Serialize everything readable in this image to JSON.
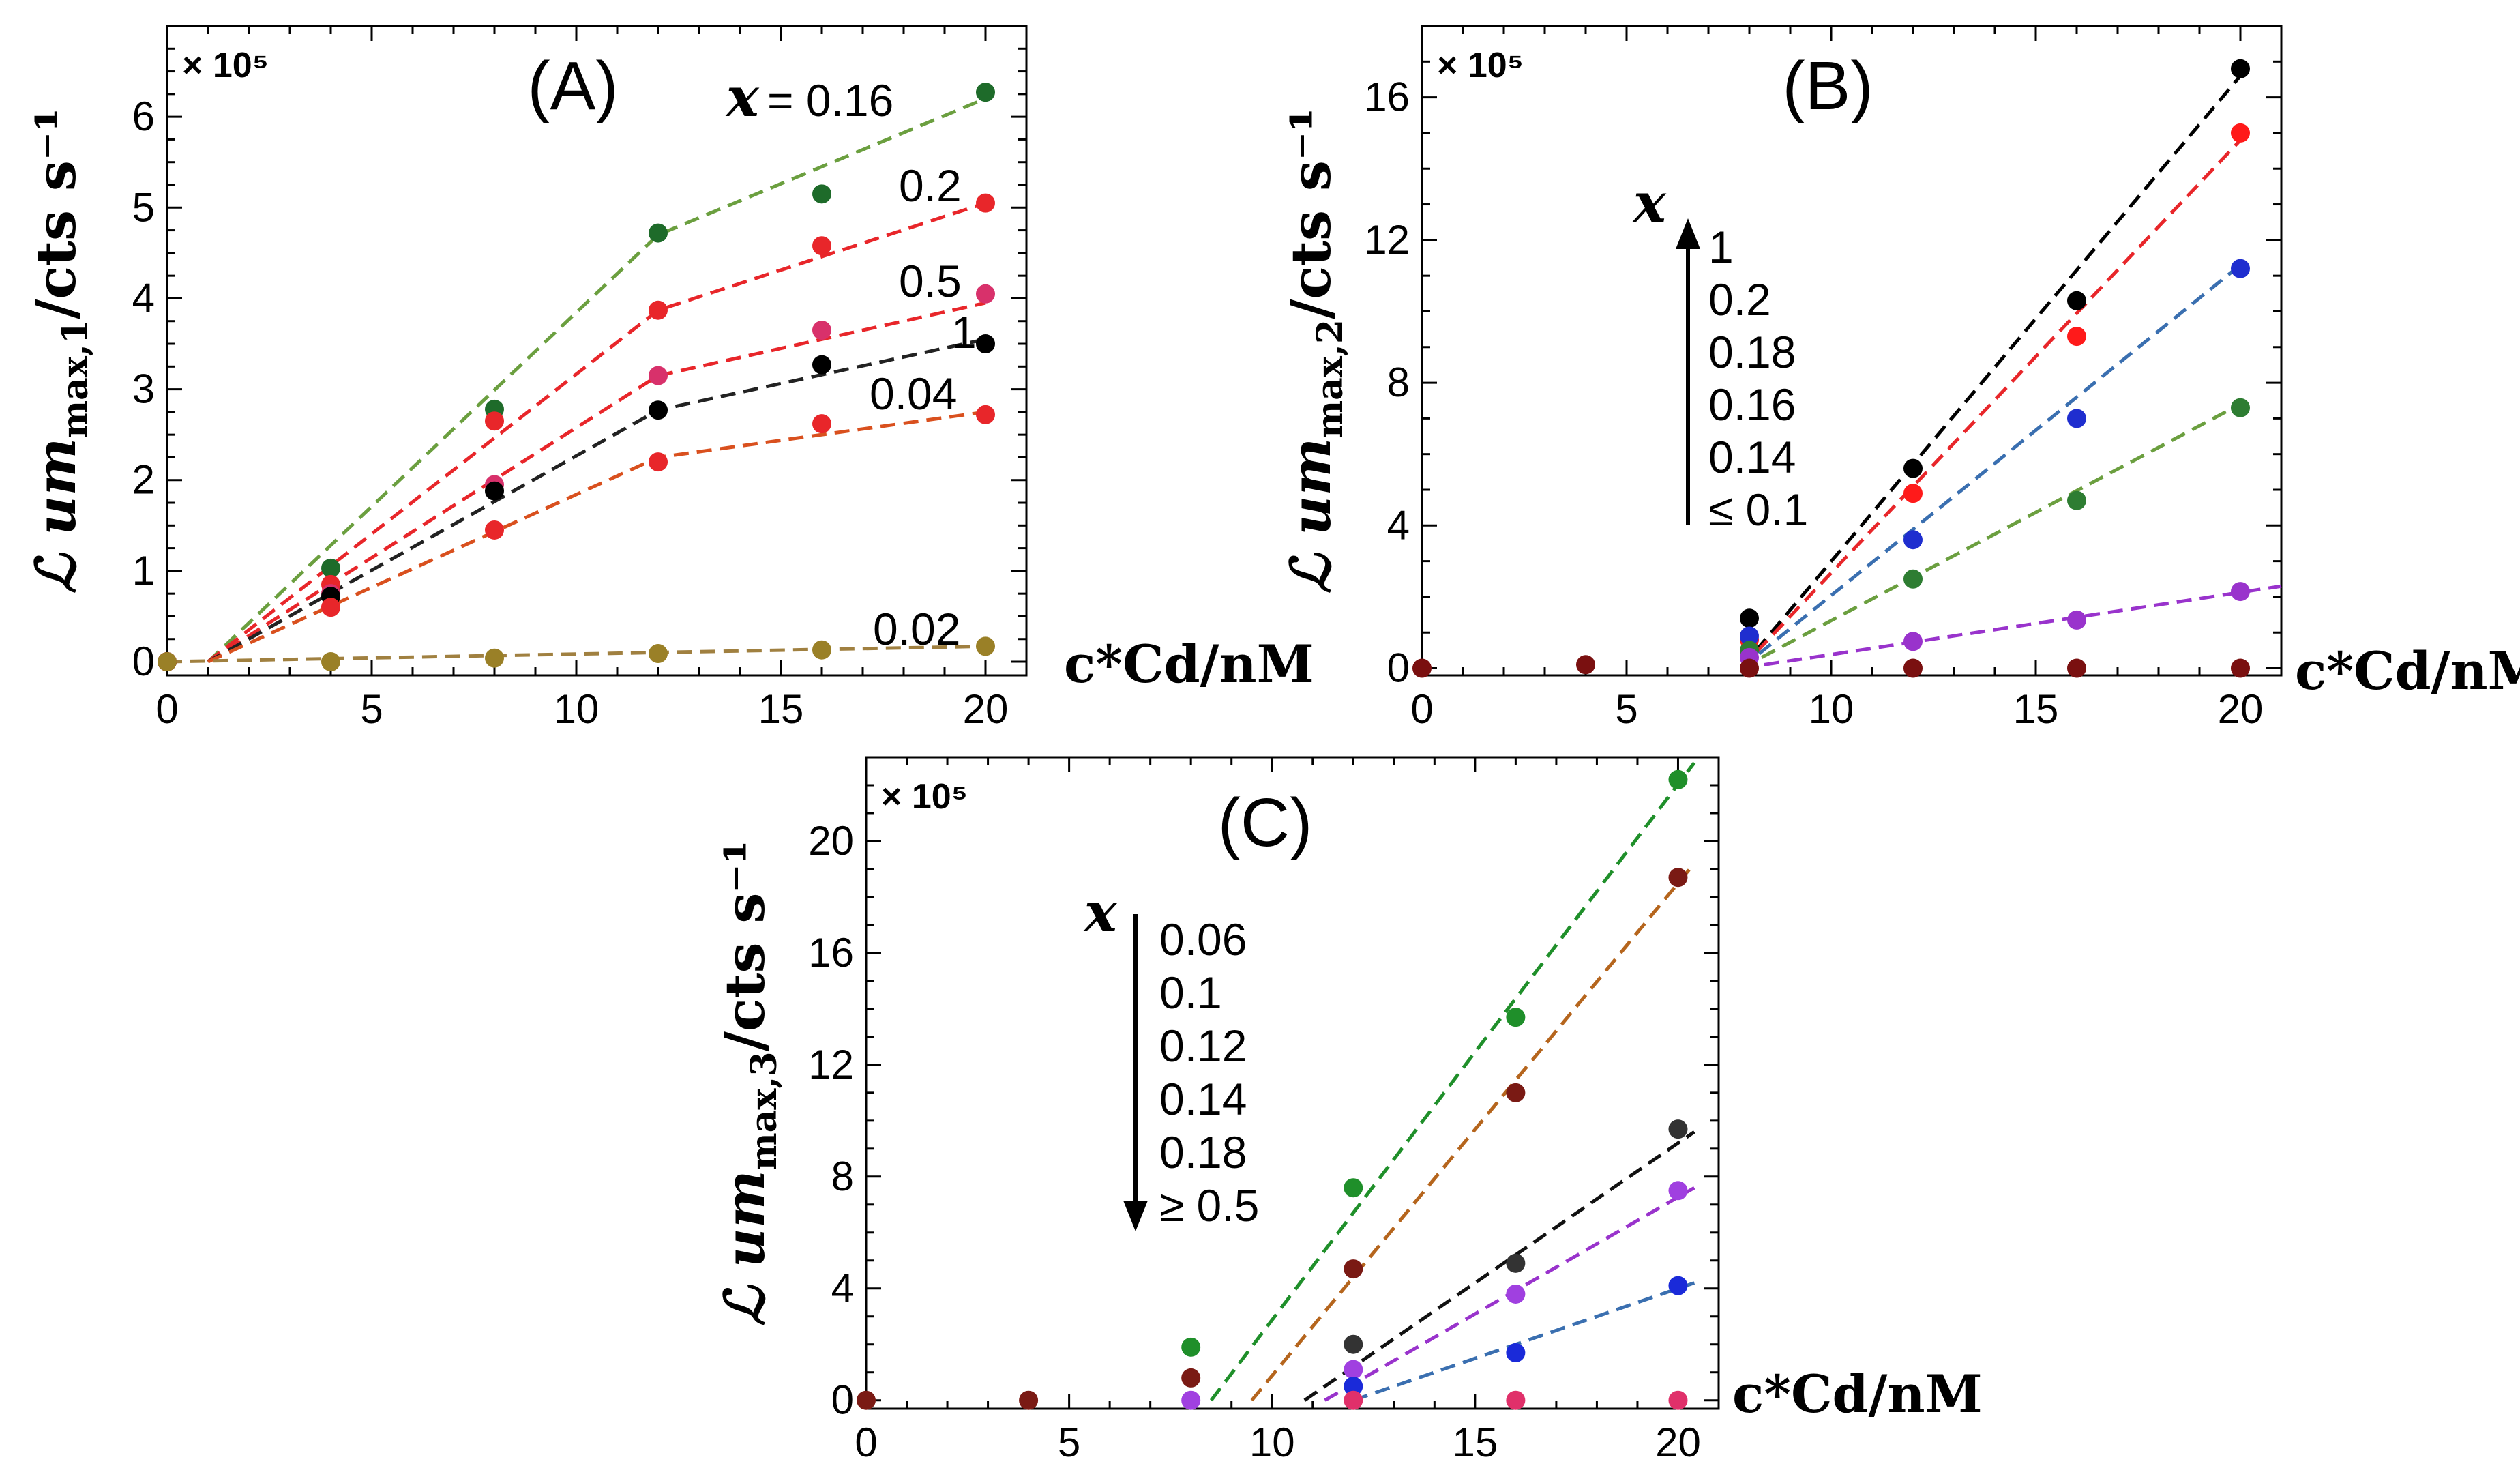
{
  "figure": {
    "scale_label": "× 10⁵",
    "ylabel_prefix": "ℒ um",
    "ylabel_suffix": "/cts s⁻¹",
    "xlabel": "c*Cd/nM",
    "x_var": "x"
  },
  "chart_data": [
    {
      "id": "A",
      "type": "scatter",
      "title": "(A)",
      "ylabel_subscript": "max,1",
      "xlim": [
        0,
        21
      ],
      "ylim": [
        -0.15,
        7.0
      ],
      "xticks": [
        0,
        5,
        10,
        15,
        20
      ],
      "yticks": [
        0,
        1,
        2,
        3,
        4,
        5,
        6
      ],
      "series": [
        {
          "name": "x = 0.16",
          "color": "#1e6b2a",
          "line_color": "#6b9f3f",
          "x": [
            0,
            4,
            8,
            12,
            16,
            20
          ],
          "y": [
            0,
            1.03,
            2.78,
            4.72,
            5.15,
            6.27
          ],
          "fit_x": [
            1,
            12,
            20
          ],
          "fit_y": [
            0,
            4.7,
            6.2
          ]
        },
        {
          "name": "0.2",
          "color": "#e8262a",
          "line_color": "#e8262a",
          "x": [
            0,
            4,
            8,
            12,
            16,
            20
          ],
          "y": [
            0,
            0.85,
            2.65,
            3.87,
            4.58,
            5.05
          ],
          "fit_x": [
            1,
            12,
            20
          ],
          "fit_y": [
            0,
            3.87,
            5.05
          ]
        },
        {
          "name": "0.5",
          "color": "#d8316b",
          "line_color": "#e8262a",
          "x": [
            0,
            4,
            8,
            12,
            16,
            20
          ],
          "y": [
            0,
            0.75,
            1.95,
            3.15,
            3.65,
            4.05
          ],
          "fit_x": [
            1,
            12,
            20
          ],
          "fit_y": [
            0,
            3.15,
            3.95
          ]
        },
        {
          "name": "1",
          "color": "#000000",
          "line_color": "#222222",
          "x": [
            0,
            4,
            8,
            12,
            16,
            20
          ],
          "y": [
            0,
            0.72,
            1.88,
            2.77,
            3.27,
            3.5
          ],
          "fit_x": [
            1,
            12,
            20
          ],
          "fit_y": [
            0,
            2.77,
            3.55
          ]
        },
        {
          "name": "0.04",
          "color": "#e8262a",
          "line_color": "#d9501e",
          "x": [
            0,
            4,
            8,
            12,
            16,
            20
          ],
          "y": [
            0,
            0.6,
            1.45,
            2.2,
            2.62,
            2.72
          ],
          "fit_x": [
            1,
            12,
            20
          ],
          "fit_y": [
            0,
            2.25,
            2.75
          ]
        },
        {
          "name": "0.02",
          "color": "#9a8027",
          "line_color": "#a08040",
          "x": [
            0,
            4,
            8,
            12,
            16,
            20
          ],
          "y": [
            0,
            0.0,
            0.04,
            0.09,
            0.13,
            0.17
          ],
          "fit_x": [
            0,
            20
          ],
          "fit_y": [
            0,
            0.17
          ]
        }
      ],
      "annotations": [
        "= 0.16",
        "0.2",
        "0.5",
        "1",
        "0.04",
        "0.02"
      ]
    },
    {
      "id": "B",
      "type": "scatter",
      "title": "(B)",
      "ylabel_subscript": "max,2",
      "xlim": [
        0,
        21
      ],
      "ylim": [
        -0.2,
        18.0
      ],
      "xticks": [
        0,
        5,
        10,
        15,
        20
      ],
      "yticks": [
        0,
        4,
        8,
        12,
        16
      ],
      "series": [
        {
          "name": "1",
          "color": "#000000",
          "line_color": "#000000",
          "x": [
            8,
            12,
            16,
            20
          ],
          "y": [
            1.4,
            5.6,
            10.3,
            16.8
          ],
          "fit_x": [
            7.8,
            20
          ],
          "fit_y": [
            0,
            16.6
          ]
        },
        {
          "name": "0.2",
          "color": "#ff1a1a",
          "line_color": "#e8262a",
          "x": [
            8,
            12,
            16,
            20
          ],
          "y": [
            0.8,
            4.9,
            9.3,
            15.0
          ],
          "fit_x": [
            7.8,
            20
          ],
          "fit_y": [
            0,
            14.8
          ]
        },
        {
          "name": "0.18",
          "color": "#1f2ecf",
          "line_color": "#3a6fb0",
          "x": [
            8,
            12,
            16,
            20
          ],
          "y": [
            0.9,
            3.6,
            7.0,
            11.2
          ],
          "fit_x": [
            7.8,
            20
          ],
          "fit_y": [
            0,
            11.3
          ]
        },
        {
          "name": "0.16",
          "color": "#2e7d32",
          "line_color": "#6b9f3f",
          "x": [
            8,
            12,
            16,
            20
          ],
          "y": [
            0.5,
            2.5,
            4.7,
            7.3
          ],
          "fit_x": [
            7.8,
            20
          ],
          "fit_y": [
            0,
            7.4
          ]
        },
        {
          "name": "0.14",
          "color": "#9933cc",
          "line_color": "#9933cc",
          "x": [
            8,
            12,
            16,
            20
          ],
          "y": [
            0.3,
            0.75,
            1.35,
            2.15
          ],
          "fit_x": [
            7.8,
            21
          ],
          "fit_y": [
            0,
            2.3
          ]
        },
        {
          "name": "≤ 0.1",
          "color": "#7a1010",
          "line_color": "#7a1010",
          "x": [
            0,
            4,
            8,
            12,
            16,
            20
          ],
          "y": [
            0,
            0.1,
            0,
            0,
            0,
            0
          ],
          "fit_x": [],
          "fit_y": []
        }
      ],
      "legend_items": [
        "1",
        "0.2",
        "0.18",
        "0.16",
        "0.14",
        "≤ 0.1"
      ]
    },
    {
      "id": "C",
      "type": "scatter",
      "title": "(C)",
      "ylabel_subscript": "max,3",
      "xlim": [
        0,
        21
      ],
      "ylim": [
        -0.3,
        23.0
      ],
      "xticks": [
        0,
        5,
        10,
        15,
        20
      ],
      "yticks": [
        0,
        4,
        8,
        12,
        16,
        20
      ],
      "series": [
        {
          "name": "0.06",
          "color": "#1f8f2a",
          "line_color": "#1f8f2a",
          "x": [
            8,
            12,
            16,
            20
          ],
          "y": [
            1.9,
            7.6,
            13.7,
            22.2
          ],
          "fit_x": [
            8.5,
            20.4
          ],
          "fit_y": [
            0,
            22.8
          ]
        },
        {
          "name": "0.1",
          "color": "#7a1a14",
          "line_color": "#b5651d",
          "x": [
            0,
            4,
            8,
            12,
            16,
            20
          ],
          "y": [
            0,
            0,
            0.8,
            4.7,
            11.0,
            18.7
          ],
          "fit_x": [
            9.5,
            20.4
          ],
          "fit_y": [
            0,
            19.2
          ]
        },
        {
          "name": "0.12",
          "color": "#333333",
          "line_color": "#111111",
          "x": [
            12,
            16,
            20
          ],
          "y": [
            2.0,
            4.9,
            9.7
          ],
          "fit_x": [
            10.8,
            20.4
          ],
          "fit_y": [
            0,
            9.6
          ]
        },
        {
          "name": "0.14",
          "color": "#a040e0",
          "line_color": "#9933cc",
          "x": [
            8,
            12,
            16,
            20
          ],
          "y": [
            0.0,
            1.1,
            3.8,
            7.5
          ],
          "fit_x": [
            11.3,
            20.4
          ],
          "fit_y": [
            0,
            7.6
          ]
        },
        {
          "name": "0.18",
          "color": "#1a2ad9",
          "line_color": "#3a6fb0",
          "x": [
            12,
            16,
            20
          ],
          "y": [
            0.5,
            1.7,
            4.1
          ],
          "fit_x": [
            12,
            20.4
          ],
          "fit_y": [
            0,
            4.2
          ]
        },
        {
          "name": "≥ 0.5",
          "color": "#e0306a",
          "line_color": "#e0306a",
          "x": [
            12,
            16,
            20
          ],
          "y": [
            0,
            0,
            0
          ],
          "fit_x": [],
          "fit_y": []
        }
      ],
      "legend_items": [
        "0.06",
        "0.1",
        "0.12",
        "0.14",
        "0.18",
        "≥ 0.5"
      ]
    }
  ]
}
